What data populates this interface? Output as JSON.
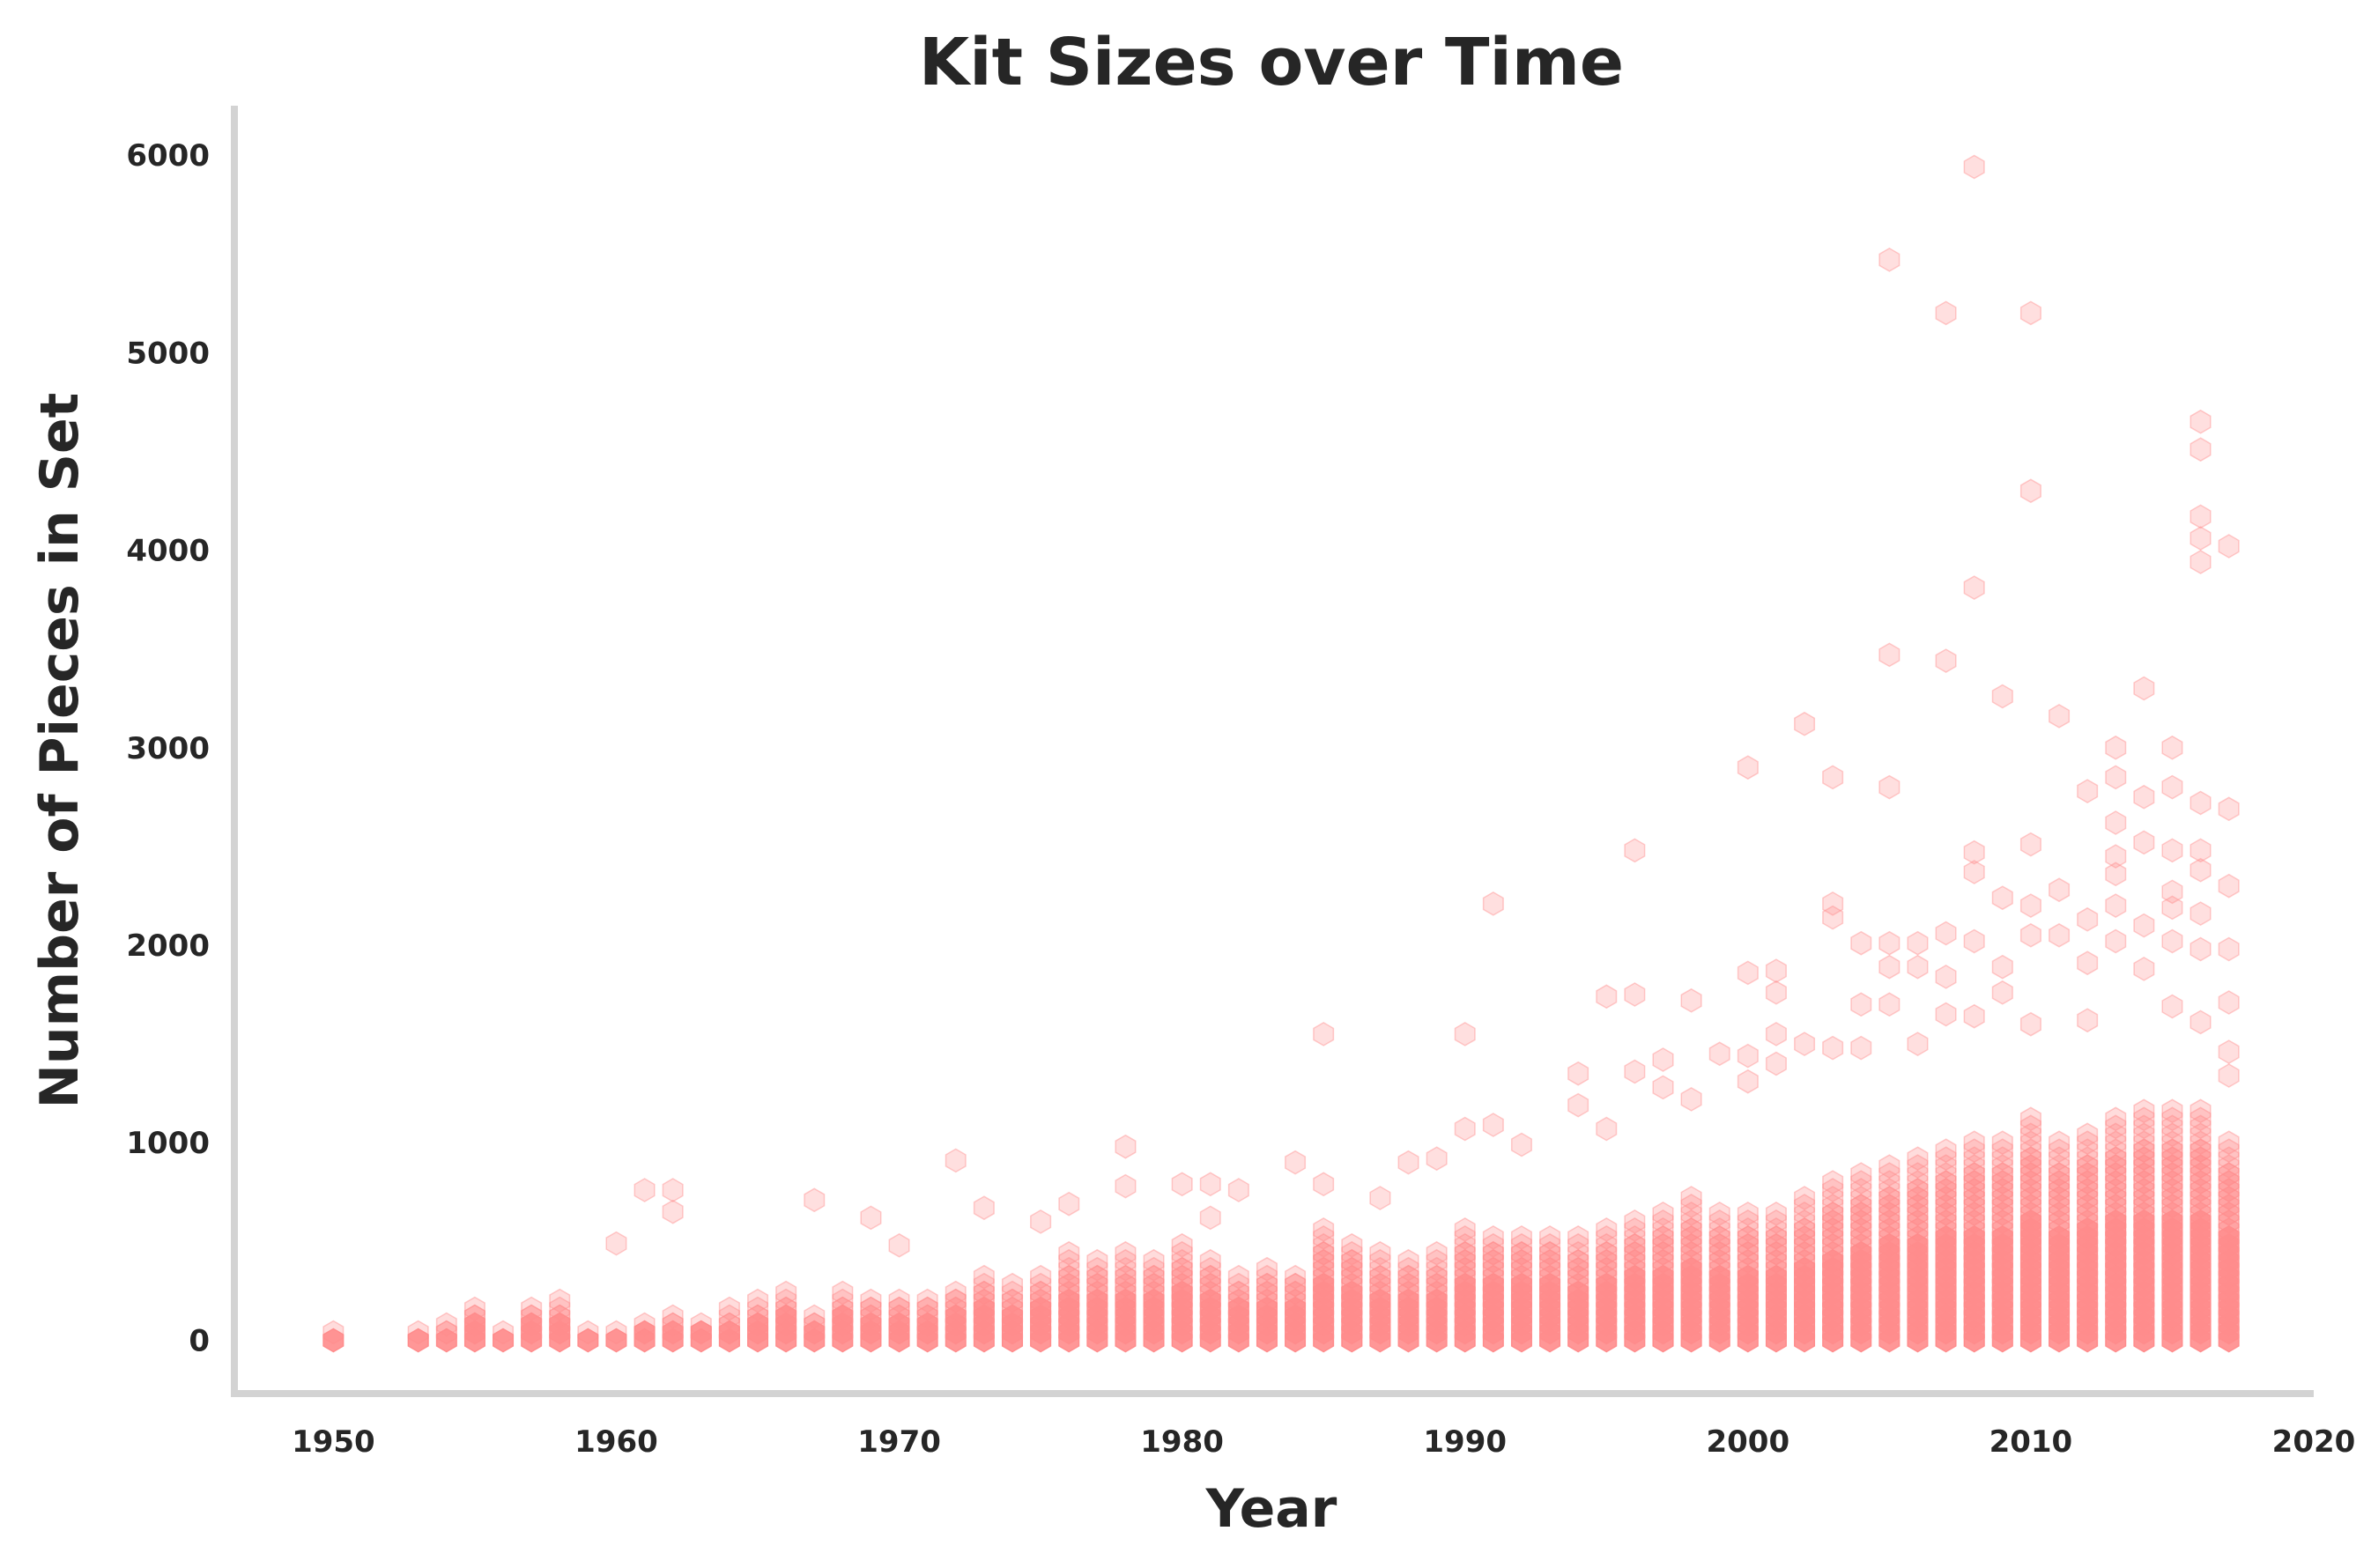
{
  "chart_data": {
    "type": "scatter",
    "title": "Kit Sizes over Time",
    "xlabel": "Year",
    "ylabel": "Number of Pieces in Set",
    "xlim": [
      1946.5,
      2020
    ],
    "ylim": [
      -270,
      6250
    ],
    "xticks": [
      1950,
      1960,
      1970,
      1980,
      1990,
      2000,
      2010,
      2020
    ],
    "yticks": [
      0,
      1000,
      2000,
      3000,
      4000,
      5000,
      6000
    ],
    "grid": false,
    "marker": "hexagon",
    "colors": {
      "marker": "#ff8c8c",
      "spine": "#d3d3d3",
      "text": "#262626"
    },
    "yearly_max_dense": [
      {
        "year": 1950,
        "max": 40
      },
      {
        "year": 1953,
        "max": 30
      },
      {
        "year": 1954,
        "max": 60
      },
      {
        "year": 1955,
        "max": 150
      },
      {
        "year": 1956,
        "max": 40
      },
      {
        "year": 1957,
        "max": 170
      },
      {
        "year": 1958,
        "max": 180
      },
      {
        "year": 1959,
        "max": 30
      },
      {
        "year": 1960,
        "max": 30
      },
      {
        "year": 1961,
        "max": 80
      },
      {
        "year": 1962,
        "max": 120
      },
      {
        "year": 1963,
        "max": 90
      },
      {
        "year": 1964,
        "max": 140
      },
      {
        "year": 1965,
        "max": 180
      },
      {
        "year": 1966,
        "max": 220
      },
      {
        "year": 1967,
        "max": 130
      },
      {
        "year": 1968,
        "max": 230
      },
      {
        "year": 1969,
        "max": 200
      },
      {
        "year": 1970,
        "max": 200
      },
      {
        "year": 1971,
        "max": 190
      },
      {
        "year": 1972,
        "max": 250
      },
      {
        "year": 1973,
        "max": 300
      },
      {
        "year": 1974,
        "max": 280
      },
      {
        "year": 1975,
        "max": 320
      },
      {
        "year": 1976,
        "max": 420
      },
      {
        "year": 1977,
        "max": 400
      },
      {
        "year": 1978,
        "max": 420
      },
      {
        "year": 1979,
        "max": 380
      },
      {
        "year": 1980,
        "max": 460
      },
      {
        "year": 1981,
        "max": 380
      },
      {
        "year": 1982,
        "max": 300
      },
      {
        "year": 1983,
        "max": 360
      },
      {
        "year": 1984,
        "max": 330
      },
      {
        "year": 1985,
        "max": 560
      },
      {
        "year": 1986,
        "max": 480
      },
      {
        "year": 1987,
        "max": 420
      },
      {
        "year": 1988,
        "max": 400
      },
      {
        "year": 1989,
        "max": 420
      },
      {
        "year": 1990,
        "max": 540
      },
      {
        "year": 1991,
        "max": 520
      },
      {
        "year": 1992,
        "max": 520
      },
      {
        "year": 1993,
        "max": 520
      },
      {
        "year": 1994,
        "max": 500
      },
      {
        "year": 1995,
        "max": 540
      },
      {
        "year": 1996,
        "max": 600
      },
      {
        "year": 1997,
        "max": 620
      },
      {
        "year": 1998,
        "max": 700
      },
      {
        "year": 1999,
        "max": 620
      },
      {
        "year": 2000,
        "max": 620
      },
      {
        "year": 2001,
        "max": 650
      },
      {
        "year": 2002,
        "max": 700
      },
      {
        "year": 2003,
        "max": 800
      },
      {
        "year": 2004,
        "max": 820
      },
      {
        "year": 2005,
        "max": 880
      },
      {
        "year": 2006,
        "max": 900
      },
      {
        "year": 2007,
        "max": 950
      },
      {
        "year": 2008,
        "max": 1000
      },
      {
        "year": 2009,
        "max": 1000
      },
      {
        "year": 2010,
        "max": 1100
      },
      {
        "year": 2011,
        "max": 1000
      },
      {
        "year": 2012,
        "max": 1050
      },
      {
        "year": 2013,
        "max": 1100
      },
      {
        "year": 2014,
        "max": 1150
      },
      {
        "year": 2015,
        "max": 1150
      },
      {
        "year": 2016,
        "max": 1150
      },
      {
        "year": 2017,
        "max": 1000
      }
    ],
    "outliers": [
      {
        "x": 1961,
        "y": 760
      },
      {
        "x": 1962,
        "y": 760
      },
      {
        "x": 1962,
        "y": 650
      },
      {
        "x": 1960,
        "y": 490
      },
      {
        "x": 1967,
        "y": 710
      },
      {
        "x": 1969,
        "y": 620
      },
      {
        "x": 1970,
        "y": 480
      },
      {
        "x": 1972,
        "y": 910
      },
      {
        "x": 1973,
        "y": 670
      },
      {
        "x": 1975,
        "y": 600
      },
      {
        "x": 1976,
        "y": 690
      },
      {
        "x": 1978,
        "y": 980
      },
      {
        "x": 1978,
        "y": 780
      },
      {
        "x": 1980,
        "y": 790
      },
      {
        "x": 1981,
        "y": 790
      },
      {
        "x": 1981,
        "y": 620
      },
      {
        "x": 1982,
        "y": 760
      },
      {
        "x": 1984,
        "y": 900
      },
      {
        "x": 1985,
        "y": 1550
      },
      {
        "x": 1985,
        "y": 790
      },
      {
        "x": 1987,
        "y": 720
      },
      {
        "x": 1988,
        "y": 900
      },
      {
        "x": 1989,
        "y": 920
      },
      {
        "x": 1990,
        "y": 1550
      },
      {
        "x": 1990,
        "y": 1070
      },
      {
        "x": 1991,
        "y": 2210
      },
      {
        "x": 1991,
        "y": 1090
      },
      {
        "x": 1992,
        "y": 990
      },
      {
        "x": 1994,
        "y": 1350
      },
      {
        "x": 1994,
        "y": 1190
      },
      {
        "x": 1995,
        "y": 1740
      },
      {
        "x": 1995,
        "y": 1070
      },
      {
        "x": 1996,
        "y": 2480
      },
      {
        "x": 1996,
        "y": 1750
      },
      {
        "x": 1996,
        "y": 1360
      },
      {
        "x": 1997,
        "y": 1420
      },
      {
        "x": 1997,
        "y": 1280
      },
      {
        "x": 1998,
        "y": 1720
      },
      {
        "x": 1998,
        "y": 1220
      },
      {
        "x": 1999,
        "y": 1450
      },
      {
        "x": 2000,
        "y": 2900
      },
      {
        "x": 2000,
        "y": 1860
      },
      {
        "x": 2000,
        "y": 1440
      },
      {
        "x": 2000,
        "y": 1310
      },
      {
        "x": 2001,
        "y": 1870
      },
      {
        "x": 2001,
        "y": 1760
      },
      {
        "x": 2001,
        "y": 1550
      },
      {
        "x": 2001,
        "y": 1400
      },
      {
        "x": 2002,
        "y": 3120
      },
      {
        "x": 2002,
        "y": 1500
      },
      {
        "x": 2003,
        "y": 2850
      },
      {
        "x": 2003,
        "y": 2210
      },
      {
        "x": 2003,
        "y": 2140
      },
      {
        "x": 2003,
        "y": 1480
      },
      {
        "x": 2004,
        "y": 2010
      },
      {
        "x": 2004,
        "y": 1700
      },
      {
        "x": 2004,
        "y": 1480
      },
      {
        "x": 2005,
        "y": 5470
      },
      {
        "x": 2005,
        "y": 3470
      },
      {
        "x": 2005,
        "y": 2800
      },
      {
        "x": 2005,
        "y": 2010
      },
      {
        "x": 2005,
        "y": 1890
      },
      {
        "x": 2005,
        "y": 1700
      },
      {
        "x": 2006,
        "y": 2010
      },
      {
        "x": 2006,
        "y": 1890
      },
      {
        "x": 2006,
        "y": 1500
      },
      {
        "x": 2007,
        "y": 5200
      },
      {
        "x": 2007,
        "y": 3440
      },
      {
        "x": 2007,
        "y": 2060
      },
      {
        "x": 2007,
        "y": 1840
      },
      {
        "x": 2007,
        "y": 1650
      },
      {
        "x": 2008,
        "y": 5940
      },
      {
        "x": 2008,
        "y": 3810
      },
      {
        "x": 2008,
        "y": 2470
      },
      {
        "x": 2008,
        "y": 2370
      },
      {
        "x": 2008,
        "y": 2020
      },
      {
        "x": 2008,
        "y": 1640
      },
      {
        "x": 2009,
        "y": 3260
      },
      {
        "x": 2009,
        "y": 2240
      },
      {
        "x": 2009,
        "y": 1890
      },
      {
        "x": 2009,
        "y": 1760
      },
      {
        "x": 2010,
        "y": 5200
      },
      {
        "x": 2010,
        "y": 4300
      },
      {
        "x": 2010,
        "y": 2510
      },
      {
        "x": 2010,
        "y": 2200
      },
      {
        "x": 2010,
        "y": 2050
      },
      {
        "x": 2010,
        "y": 1600
      },
      {
        "x": 2011,
        "y": 3160
      },
      {
        "x": 2011,
        "y": 2280
      },
      {
        "x": 2011,
        "y": 2050
      },
      {
        "x": 2012,
        "y": 2780
      },
      {
        "x": 2012,
        "y": 2130
      },
      {
        "x": 2012,
        "y": 1910
      },
      {
        "x": 2012,
        "y": 1620
      },
      {
        "x": 2013,
        "y": 3000
      },
      {
        "x": 2013,
        "y": 2850
      },
      {
        "x": 2013,
        "y": 2620
      },
      {
        "x": 2013,
        "y": 2450
      },
      {
        "x": 2013,
        "y": 2360
      },
      {
        "x": 2013,
        "y": 2200
      },
      {
        "x": 2013,
        "y": 2020
      },
      {
        "x": 2014,
        "y": 3300
      },
      {
        "x": 2014,
        "y": 2750
      },
      {
        "x": 2014,
        "y": 2520
      },
      {
        "x": 2014,
        "y": 2100
      },
      {
        "x": 2014,
        "y": 1880
      },
      {
        "x": 2015,
        "y": 3000
      },
      {
        "x": 2015,
        "y": 2800
      },
      {
        "x": 2015,
        "y": 2480
      },
      {
        "x": 2015,
        "y": 2270
      },
      {
        "x": 2015,
        "y": 2190
      },
      {
        "x": 2015,
        "y": 2020
      },
      {
        "x": 2015,
        "y": 1690
      },
      {
        "x": 2016,
        "y": 4650
      },
      {
        "x": 2016,
        "y": 4510
      },
      {
        "x": 2016,
        "y": 4170
      },
      {
        "x": 2016,
        "y": 4060
      },
      {
        "x": 2016,
        "y": 3940
      },
      {
        "x": 2016,
        "y": 2720
      },
      {
        "x": 2016,
        "y": 2480
      },
      {
        "x": 2016,
        "y": 2380
      },
      {
        "x": 2016,
        "y": 2160
      },
      {
        "x": 2016,
        "y": 1980
      },
      {
        "x": 2016,
        "y": 1610
      },
      {
        "x": 2017,
        "y": 4020
      },
      {
        "x": 2017,
        "y": 2690
      },
      {
        "x": 2017,
        "y": 2300
      },
      {
        "x": 2017,
        "y": 1980
      },
      {
        "x": 2017,
        "y": 1710
      },
      {
        "x": 2017,
        "y": 1460
      },
      {
        "x": 2017,
        "y": 1340
      }
    ]
  }
}
